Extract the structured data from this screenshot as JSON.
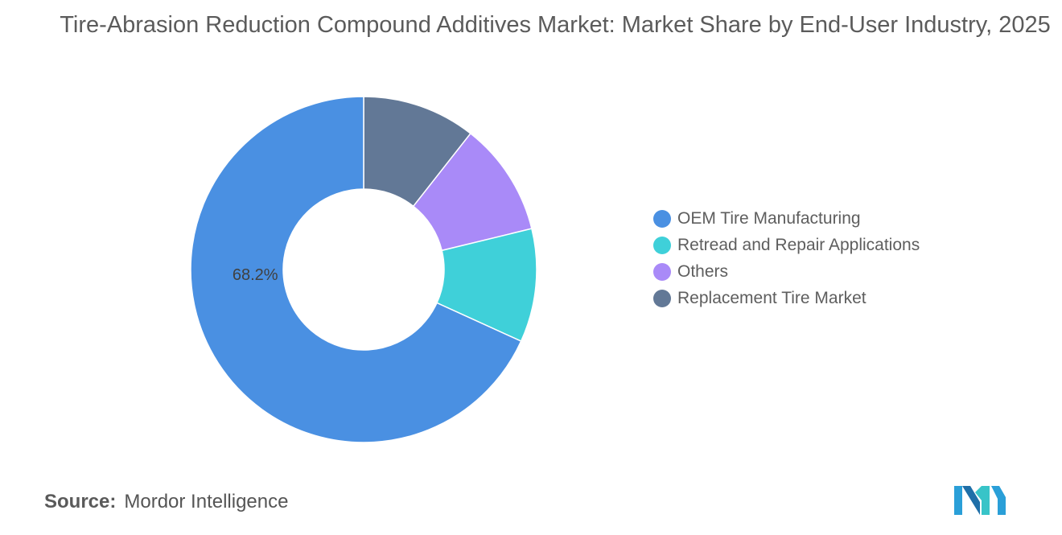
{
  "chart_data": {
    "type": "pie",
    "title": "Tire-Abrasion Reduction Compound Additives Market: Market Share by End-User Industry, 2025",
    "categories": [
      "OEM Tire Manufacturing",
      "Retread and Repair Applications",
      "Others",
      "Replacement Tire Market"
    ],
    "values": [
      68.2,
      10.6,
      10.6,
      10.6
    ],
    "colors": [
      "#4a90e2",
      "#3fd0d9",
      "#a98af8",
      "#627896"
    ],
    "data_labels": [
      "68.2%",
      "",
      "",
      ""
    ],
    "donut": true,
    "legend_position": "right"
  },
  "source": {
    "label": "Source:",
    "value": "Mordor Intelligence"
  },
  "logo_icon": "mordor-intelligence-logo"
}
